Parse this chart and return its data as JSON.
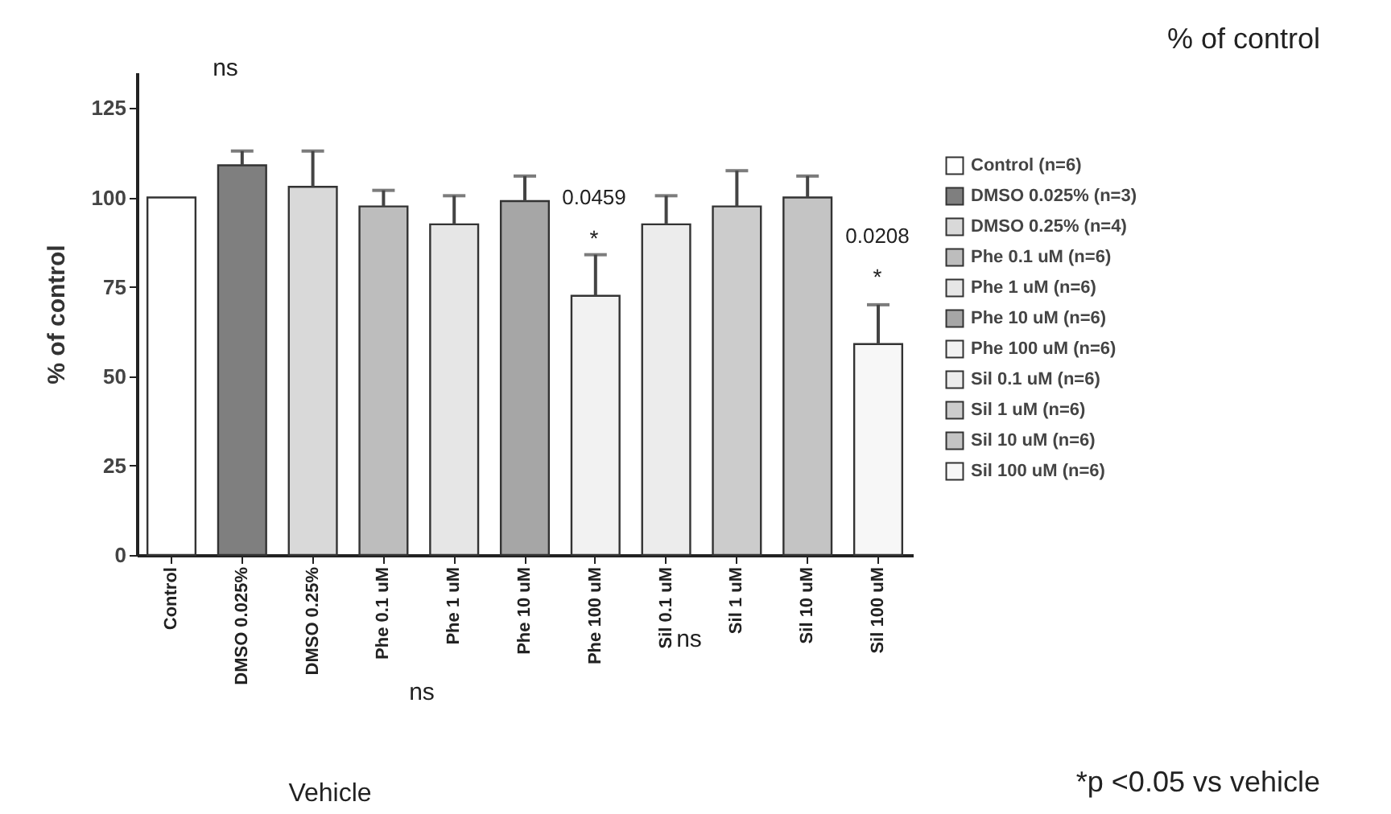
{
  "chart_data": {
    "type": "bar",
    "title": "% of control",
    "ylabel": "% of control",
    "categories": [
      "Control",
      "DMSO 0.025%",
      "DMSO 0.25%",
      "Phe 0.1 uM",
      "Phe 1 uM",
      "Phe 10 uM",
      "Phe 100 uM",
      "Sil 0.1 uM",
      "Sil 1 uM",
      "Sil 10 uM",
      "Sil 100 uM"
    ],
    "series": [
      {
        "name": "Control  (n=6)",
        "color": "#ffffff",
        "values": [
          100,
          null,
          null,
          null,
          null,
          null,
          null,
          null,
          null,
          null,
          null
        ],
        "errors": [
          null,
          null,
          null,
          null,
          null,
          null,
          null,
          null,
          null,
          null,
          null
        ]
      },
      {
        "name": "DMSO 0.025%  (n=3)",
        "color": "#7f7f7f",
        "values": [
          null,
          109,
          null,
          null,
          null,
          null,
          null,
          null,
          null,
          null,
          null
        ],
        "errors": [
          null,
          [
            109,
            113
          ],
          null,
          null,
          null,
          null,
          null,
          null,
          null,
          null,
          null
        ]
      },
      {
        "name": "DMSO 0.25%  (n=4)",
        "color": "#d9d9d9",
        "values": [
          null,
          null,
          103,
          null,
          null,
          null,
          null,
          null,
          null,
          null,
          null
        ],
        "errors": [
          null,
          null,
          [
            103,
            113
          ],
          null,
          null,
          null,
          null,
          null,
          null,
          null,
          null
        ]
      },
      {
        "name": "Phe 0.1 uM  (n=6)",
        "color": "#bdbdbd",
        "values": [
          null,
          null,
          null,
          97.5,
          null,
          null,
          null,
          null,
          null,
          null,
          null
        ],
        "errors": [
          null,
          null,
          null,
          [
            97.5,
            102
          ],
          null,
          null,
          null,
          null,
          null,
          null,
          null
        ]
      },
      {
        "name": "Phe 1 uM  (n=6)",
        "color": "#e6e6e6",
        "values": [
          null,
          null,
          null,
          null,
          92.5,
          null,
          null,
          null,
          null,
          null,
          null
        ],
        "errors": [
          null,
          null,
          null,
          null,
          [
            92.5,
            100.5
          ],
          null,
          null,
          null,
          null,
          null,
          null
        ]
      },
      {
        "name": "Phe 10 uM  (n=6)",
        "color": "#a6a6a6",
        "values": [
          null,
          null,
          null,
          null,
          null,
          99,
          null,
          null,
          null,
          null,
          null
        ],
        "errors": [
          null,
          null,
          null,
          null,
          null,
          [
            99,
            106
          ],
          null,
          null,
          null,
          null,
          null
        ]
      },
      {
        "name": "Phe 100 uM  (n=6)",
        "color": "#f2f2f2",
        "values": [
          null,
          null,
          null,
          null,
          null,
          null,
          72.5,
          null,
          null,
          null,
          null
        ],
        "errors": [
          null,
          null,
          null,
          null,
          null,
          null,
          [
            72.5,
            84
          ],
          null,
          null,
          null,
          null
        ]
      },
      {
        "name": "Sil 0.1 uM  (n=6)",
        "color": "#ececec",
        "values": [
          null,
          null,
          null,
          null,
          null,
          null,
          null,
          92.5,
          null,
          null,
          null
        ],
        "errors": [
          null,
          null,
          null,
          null,
          null,
          null,
          null,
          [
            92.5,
            100.5
          ],
          null,
          null,
          null
        ]
      },
      {
        "name": "Sil 1 uM  (n=6)",
        "color": "#cccccc",
        "values": [
          null,
          null,
          null,
          null,
          null,
          null,
          null,
          null,
          97.5,
          null,
          null
        ],
        "errors": [
          null,
          null,
          null,
          null,
          null,
          null,
          null,
          null,
          [
            97.5,
            107.5
          ],
          null,
          null
        ]
      },
      {
        "name": "Sil 10 uM  (n=6)",
        "color": "#c4c4c4",
        "values": [
          null,
          null,
          null,
          null,
          null,
          null,
          null,
          null,
          null,
          100,
          null
        ],
        "errors": [
          null,
          null,
          null,
          null,
          null,
          null,
          null,
          null,
          null,
          [
            100,
            106
          ],
          null
        ]
      },
      {
        "name": "Sil 100 uM  (n=6)",
        "color": "#f7f7f7",
        "values": [
          null,
          null,
          null,
          null,
          null,
          null,
          null,
          null,
          null,
          null,
          59
        ],
        "errors": [
          null,
          null,
          null,
          null,
          null,
          null,
          null,
          null,
          null,
          null,
          [
            59,
            70
          ]
        ]
      }
    ],
    "ylim": [
      0,
      135
    ],
    "yticks": [
      0,
      25,
      50,
      75,
      100,
      125
    ],
    "grid": false,
    "legend": "right",
    "annotations": [
      "ns",
      "0.0459",
      "*",
      "0.0208",
      "*",
      "ns",
      "ns",
      "Vehicle",
      "*p <0.05 vs vehicle"
    ]
  }
}
